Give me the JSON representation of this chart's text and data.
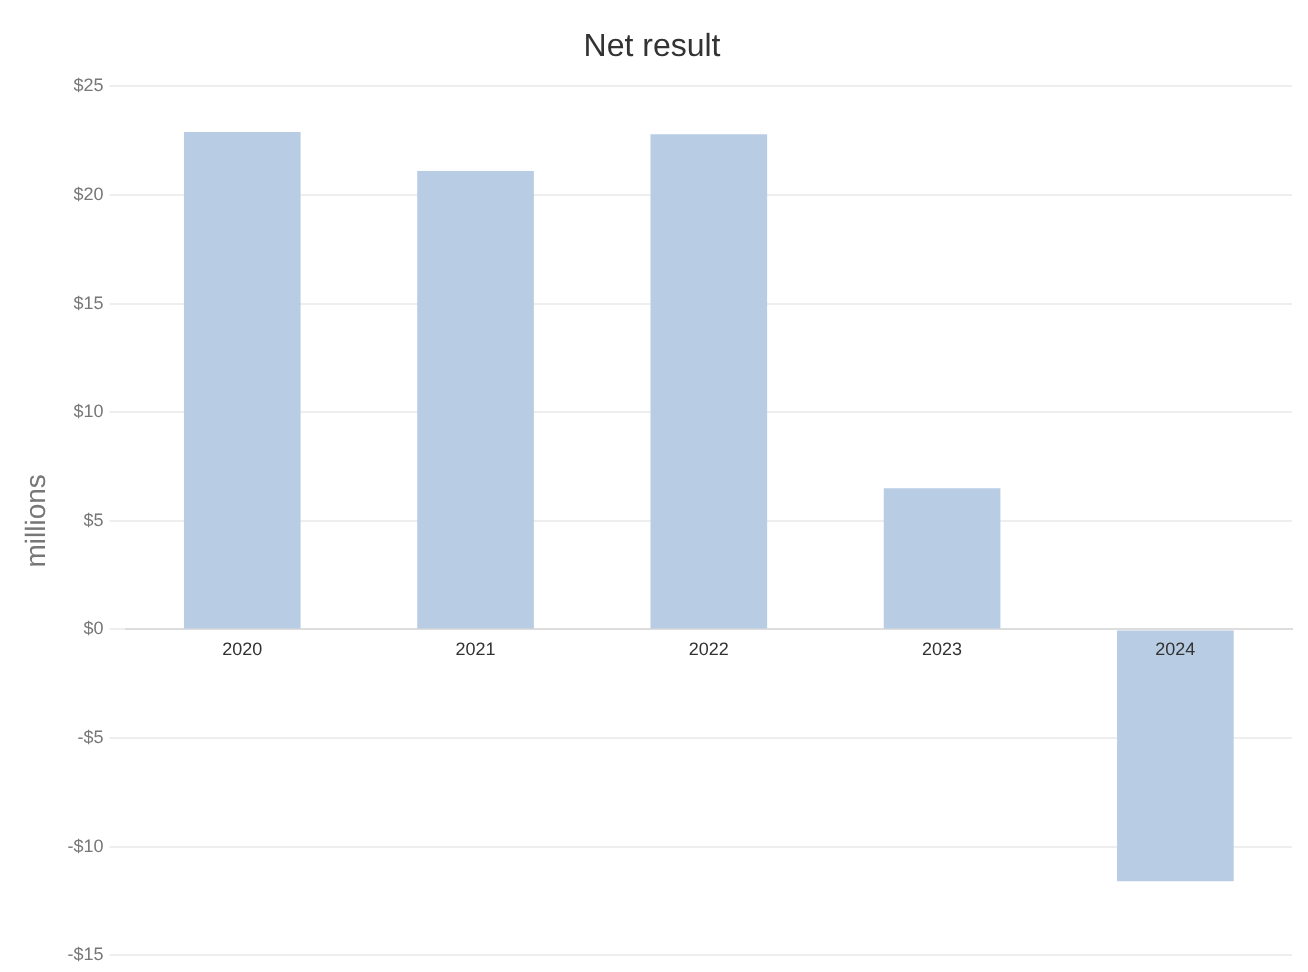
{
  "chart_data": {
    "type": "bar",
    "title": "Net result",
    "ylabel": "millions",
    "categories": [
      "2020",
      "2021",
      "2022",
      "2023",
      "2024"
    ],
    "values": [
      22.9,
      21.1,
      22.8,
      6.5,
      -11.6
    ],
    "color": "#b8cce4",
    "ylim": [
      -15,
      25
    ],
    "yticks": [
      {
        "value": -15,
        "label": "-$15"
      },
      {
        "value": -10,
        "label": "-$10"
      },
      {
        "value": -5,
        "label": "-$5"
      },
      {
        "value": 0,
        "label": "$0"
      },
      {
        "value": 5,
        "label": "$5"
      },
      {
        "value": 10,
        "label": "$10"
      },
      {
        "value": 15,
        "label": "$15"
      },
      {
        "value": 20,
        "label": "$20"
      },
      {
        "value": 25,
        "label": "$25"
      }
    ],
    "grid": "y",
    "legend": false
  }
}
